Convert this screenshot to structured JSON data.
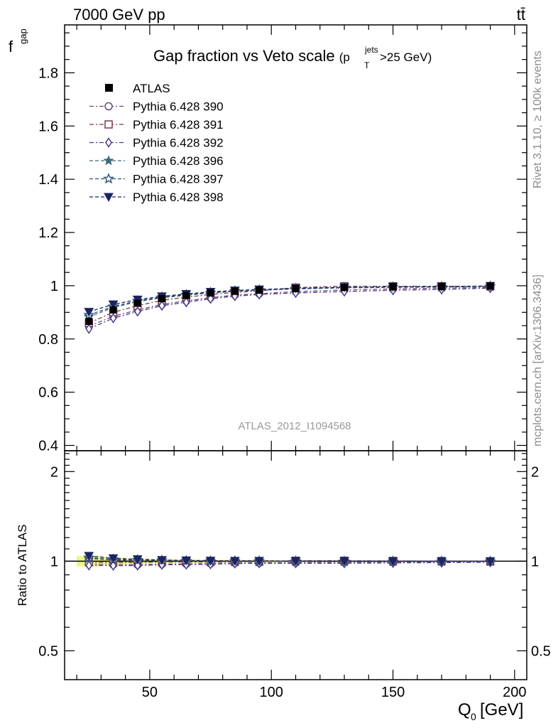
{
  "header": {
    "left": "7000 GeV pp",
    "right": "tt̄"
  },
  "side": {
    "rivet": "Rivet 3.1.10, ≥ 100k events",
    "mcplots": "mcplots.cern.ch [arXiv:1306.3436]"
  },
  "colors": {
    "data": "#000000",
    "band": "#e8f56c",
    "s390": "#6b4a7a",
    "s391": "#7a3a4d",
    "s392": "#4b3a8a",
    "s396": "#3d6a7a",
    "s397": "#2f4f7a",
    "s398": "#1b2560"
  },
  "chart_data": [
    {
      "type": "scatter",
      "panel": "main",
      "title_main": "Gap fraction vs Veto scale",
      "title_sub_pre": "(p",
      "title_sub_sup": "jets",
      "title_sub_sub": "T",
      "title_sub_post": ">25 GeV)",
      "ylabel": "f",
      "ylabel_sub": "gap",
      "analysis_label": "ATLAS_2012_I1094568",
      "xlim": [
        15,
        205
      ],
      "ylim": [
        0.38,
        1.98
      ],
      "yticks": [
        0.4,
        0.6,
        0.8,
        1.0,
        1.2,
        1.4,
        1.6,
        1.8
      ],
      "ytick_labels": [
        "0.4",
        "0.6",
        "0.8",
        "1",
        "1.2",
        "1.4",
        "1.6",
        "1.8"
      ],
      "legend_position": "top-left",
      "x": [
        25,
        35,
        45,
        55,
        65,
        75,
        85,
        95,
        110,
        130,
        150,
        170,
        190
      ],
      "data": {
        "name": "ATLAS",
        "values": [
          0.866,
          0.909,
          0.934,
          0.951,
          0.963,
          0.973,
          0.979,
          0.983,
          0.989,
          0.994,
          0.996,
          0.997,
          0.999
        ]
      },
      "series": [
        {
          "name": "Pythia 6.428 390",
          "marker": "circle-open",
          "dash": "dashdot",
          "color_key": "s390",
          "values": [
            0.848,
            0.885,
            0.909,
            0.93,
            0.943,
            0.955,
            0.965,
            0.97,
            0.978,
            0.984,
            0.988,
            0.991,
            0.994
          ]
        },
        {
          "name": "Pythia 6.428 391",
          "marker": "square-open",
          "dash": "dashdot",
          "color_key": "s391",
          "values": [
            0.86,
            0.9,
            0.925,
            0.945,
            0.957,
            0.967,
            0.975,
            0.98,
            0.993,
            0.998,
            0.998,
            0.998,
            0.998
          ]
        },
        {
          "name": "Pythia 6.428 392",
          "marker": "diamond-open",
          "dash": "dashdot",
          "color_key": "s392",
          "values": [
            0.838,
            0.878,
            0.903,
            0.925,
            0.938,
            0.951,
            0.961,
            0.967,
            0.973,
            0.978,
            0.983,
            0.986,
            0.991
          ]
        },
        {
          "name": "Pythia 6.428 396",
          "marker": "star-filled",
          "dash": "dashed",
          "color_key": "s396",
          "values": [
            0.883,
            0.918,
            0.94,
            0.955,
            0.964,
            0.973,
            0.979,
            0.983,
            0.988,
            0.992,
            0.994,
            0.995,
            0.998
          ]
        },
        {
          "name": "Pythia 6.428 397",
          "marker": "star-open",
          "dash": "dashed",
          "color_key": "s397",
          "values": [
            0.89,
            0.922,
            0.943,
            0.957,
            0.966,
            0.974,
            0.98,
            0.984,
            0.989,
            0.993,
            0.995,
            0.996,
            0.998
          ]
        },
        {
          "name": "Pythia 6.428 398",
          "marker": "triangle-down-filled",
          "dash": "dashed",
          "color_key": "s398",
          "values": [
            0.902,
            0.93,
            0.948,
            0.96,
            0.969,
            0.977,
            0.982,
            0.986,
            0.99,
            0.994,
            0.996,
            0.997,
            0.999
          ]
        }
      ]
    },
    {
      "type": "scatter",
      "panel": "ratio",
      "ylabel": "Ratio to ATLAS",
      "xlabel": "Q",
      "xlabel_sub": "0",
      "xlabel_unit": "[GeV]",
      "xlim": [
        15,
        205
      ],
      "ylim": [
        0.4,
        2.35
      ],
      "log_y": true,
      "xticks": [
        50,
        100,
        150,
        200
      ],
      "xtick_labels": [
        "50",
        "100",
        "150",
        "200"
      ],
      "yticks": [
        0.5,
        1,
        2
      ],
      "ytick_labels": [
        "0.5",
        "1",
        "2"
      ],
      "x": [
        25,
        35,
        45,
        55,
        65,
        75,
        85,
        95,
        110,
        130,
        150,
        170,
        190
      ],
      "band_halfwidth": [
        0.04,
        0.028,
        0.02,
        0.016,
        0.013,
        0.011,
        0.009,
        0.008,
        0.006,
        0.005,
        0.004,
        0.003,
        0.003
      ],
      "series": [
        {
          "name": "Pythia 6.428 390",
          "color_key": "s390",
          "marker": "circle-open",
          "dash": "dashdot",
          "values": [
            0.979,
            0.974,
            0.973,
            0.978,
            0.979,
            0.982,
            0.986,
            0.987,
            0.989,
            0.99,
            0.992,
            0.994,
            0.995
          ]
        },
        {
          "name": "Pythia 6.428 391",
          "color_key": "s391",
          "marker": "square-open",
          "dash": "dashdot",
          "values": [
            0.993,
            0.99,
            0.99,
            0.994,
            0.994,
            0.994,
            0.996,
            0.997,
            1.004,
            1.004,
            1.002,
            1.001,
            0.999
          ]
        },
        {
          "name": "Pythia 6.428 392",
          "color_key": "s392",
          "marker": "diamond-open",
          "dash": "dashdot",
          "values": [
            0.968,
            0.966,
            0.967,
            0.973,
            0.974,
            0.977,
            0.982,
            0.984,
            0.984,
            0.984,
            0.987,
            0.989,
            0.992
          ]
        },
        {
          "name": "Pythia 6.428 396",
          "color_key": "s396",
          "marker": "star-filled",
          "dash": "dashed",
          "values": [
            1.02,
            1.01,
            1.006,
            1.004,
            1.001,
            1.0,
            1.0,
            1.0,
            0.999,
            0.998,
            0.998,
            0.998,
            0.999
          ]
        },
        {
          "name": "Pythia 6.428 397",
          "color_key": "s397",
          "marker": "star-open",
          "dash": "dashed",
          "values": [
            1.028,
            1.014,
            1.01,
            1.006,
            1.003,
            1.001,
            1.001,
            1.001,
            1.0,
            0.999,
            0.999,
            0.999,
            0.999
          ]
        },
        {
          "name": "Pythia 6.428 398",
          "color_key": "s398",
          "marker": "triangle-down-filled",
          "dash": "dashed",
          "values": [
            1.042,
            1.023,
            1.015,
            1.009,
            1.006,
            1.004,
            1.003,
            1.003,
            1.001,
            1.0,
            1.0,
            1.0,
            1.0
          ]
        }
      ]
    }
  ]
}
